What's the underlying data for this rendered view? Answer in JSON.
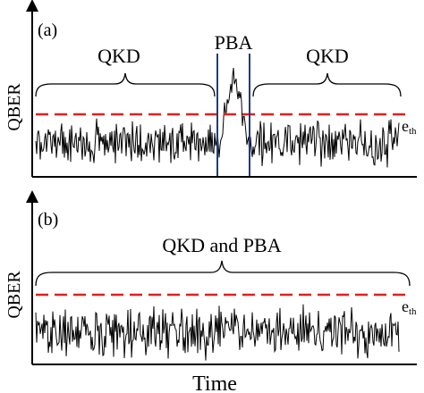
{
  "figure": {
    "x_axis_label": "Time",
    "panels": [
      {
        "id": "a",
        "tag": "(a)",
        "ylabel": "QBER",
        "threshold_label": "e",
        "threshold_sub": "th",
        "regions": [
          {
            "label": "QKD"
          },
          {
            "label": "PBA"
          },
          {
            "label": "QKD"
          }
        ]
      },
      {
        "id": "b",
        "tag": "(b)",
        "ylabel": "QBER",
        "threshold_label": "e",
        "threshold_sub": "th",
        "regions": [
          {
            "label": "QKD and PBA"
          }
        ]
      }
    ]
  },
  "colors": {
    "axis": "#000000",
    "signal": "#000000",
    "threshold": "#e02020",
    "pba_markers": "#1f3a8a"
  }
}
